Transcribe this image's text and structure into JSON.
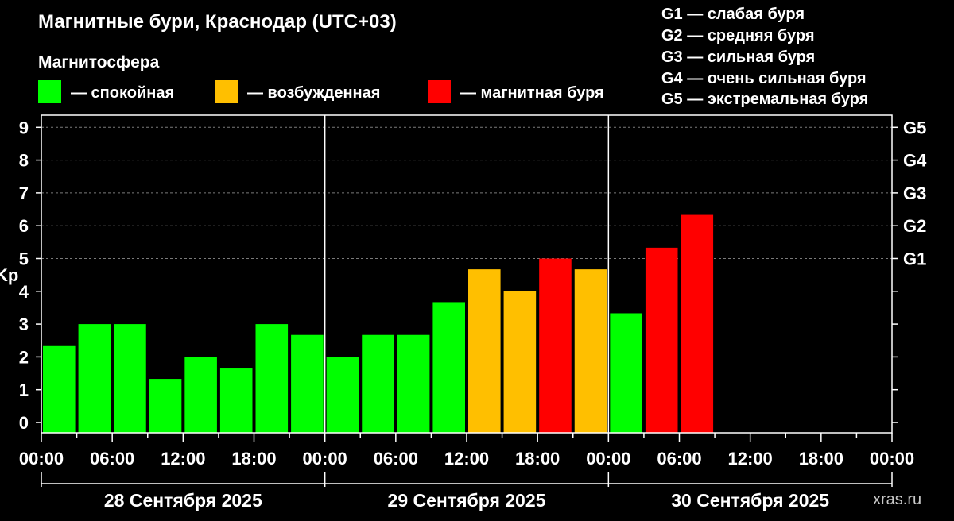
{
  "title": "Магнитные бури, Краснодар (UTC+03)",
  "legend_title": "Магнитосфера",
  "legend": [
    {
      "label": "— спокойная",
      "color": "#00ff00"
    },
    {
      "label": "— возбужденная",
      "color": "#ffbf00"
    },
    {
      "label": "— магнитная буря",
      "color": "#ff0000"
    }
  ],
  "g_legend": [
    "G1 — слабая буря",
    "G2 — средняя буря",
    "G3 — сильная буря",
    "G4 — очень сильная буря",
    "G5 — экстремальная буря"
  ],
  "watermark": "xras.ru",
  "chart_data": {
    "type": "bar",
    "ylabel": "Kp",
    "ylim": [
      0,
      9
    ],
    "yticks": [
      "0",
      "1",
      "2",
      "3",
      "4",
      "5",
      "6",
      "7",
      "8",
      "9"
    ],
    "right_labels": [
      {
        "label": "G1",
        "value": 5
      },
      {
        "label": "G2",
        "value": 6
      },
      {
        "label": "G3",
        "value": 7
      },
      {
        "label": "G4",
        "value": 8
      },
      {
        "label": "G5",
        "value": 9
      }
    ],
    "grid": "dashed horizontal at 5, 6, 7, 8, 9",
    "xticks": [
      "00:00",
      "06:00",
      "12:00",
      "18:00",
      "00:00",
      "06:00",
      "12:00",
      "18:00",
      "00:00",
      "06:00",
      "12:00",
      "18:00",
      "00:00"
    ],
    "days": [
      "28 Сентября 2025",
      "29 Сентября 2025",
      "30 Сентября 2025"
    ],
    "bar_interval_hours": 3,
    "values": [
      2.33,
      3.0,
      3.0,
      1.33,
      2.0,
      1.67,
      3.0,
      2.67,
      2.0,
      2.67,
      2.67,
      3.67,
      4.67,
      4.0,
      5.0,
      4.67,
      3.33,
      5.33,
      6.33
    ],
    "colors": [
      "#00ff00",
      "#00ff00",
      "#00ff00",
      "#00ff00",
      "#00ff00",
      "#00ff00",
      "#00ff00",
      "#00ff00",
      "#00ff00",
      "#00ff00",
      "#00ff00",
      "#00ff00",
      "#ffbf00",
      "#ffbf00",
      "#ff0000",
      "#ffbf00",
      "#00ff00",
      "#ff0000",
      "#ff0000"
    ]
  }
}
